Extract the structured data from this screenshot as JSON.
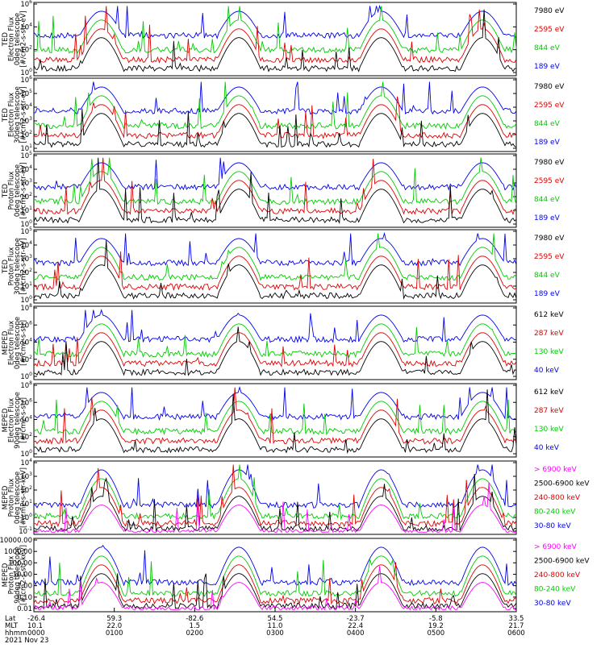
{
  "chart_data": [
    {
      "type": "line",
      "ylabel_lines": [
        "TED",
        "Electron Flux",
        "0deg telescope",
        "[#/cm2-s-str-eV]"
      ],
      "yscale": "log",
      "ytick_labels": [
        "10^6",
        "10^4",
        "10^2",
        "10^0"
      ],
      "yrange_exp": [
        0,
        6
      ],
      "legend": [
        {
          "name": "7980 eV",
          "color": "#000000"
        },
        {
          "name": "2595 eV",
          "color": "#e00000"
        },
        {
          "name": "844 eV",
          "color": "#00cc00"
        },
        {
          "name": "189 eV",
          "color": "#0000ee"
        }
      ]
    },
    {
      "type": "line",
      "ylabel_lines": [
        "TED",
        "Electron Flux",
        "30deg telescope",
        "[#/cm2-s-str-eV]"
      ],
      "yscale": "log",
      "ytick_labels": [
        "10^6",
        "10^5",
        "10^4",
        "10^3",
        "10^2",
        "10^1"
      ],
      "yrange_exp": [
        1,
        6
      ],
      "legend": [
        {
          "name": "7980 eV",
          "color": "#000000"
        },
        {
          "name": "2595 eV",
          "color": "#e00000"
        },
        {
          "name": "844 eV",
          "color": "#00cc00"
        },
        {
          "name": "189 eV",
          "color": "#0000ee"
        }
      ]
    },
    {
      "type": "line",
      "ylabel_lines": [
        "TED",
        "Proton Flux",
        "0deg telescope",
        "[#/cm2-s-str-eV]"
      ],
      "yscale": "log",
      "ytick_labels": [
        "10^5",
        "10^4",
        "10^3",
        "10^2",
        "10^1",
        "10^0"
      ],
      "yrange_exp": [
        0,
        5
      ],
      "legend": [
        {
          "name": "7980 eV",
          "color": "#000000"
        },
        {
          "name": "2595 eV",
          "color": "#e00000"
        },
        {
          "name": "844 eV",
          "color": "#00cc00"
        },
        {
          "name": "189 eV",
          "color": "#0000ee"
        }
      ]
    },
    {
      "type": "line",
      "ylabel_lines": [
        "TED",
        "Proton Flux",
        "30deg telescope",
        "[#/cm2-s-str-eV]"
      ],
      "yscale": "log",
      "ytick_labels": [
        "10^5",
        "10^4",
        "10^3",
        "10^2",
        "10^1",
        "10^0"
      ],
      "yrange_exp": [
        0,
        5
      ],
      "legend": [
        {
          "name": "7980 eV",
          "color": "#000000"
        },
        {
          "name": "2595 eV",
          "color": "#e00000"
        },
        {
          "name": "844 eV",
          "color": "#00cc00"
        },
        {
          "name": "189 eV",
          "color": "#0000ee"
        }
      ]
    },
    {
      "type": "line",
      "ylabel_lines": [
        "MEPED",
        "Electron Flux",
        "0deg telescope",
        "[#/cm2-s-str]"
      ],
      "yscale": "log",
      "ytick_labels": [
        "10^8",
        "10^6",
        "10^4",
        "10^2",
        "10^0"
      ],
      "yrange_exp": [
        0,
        8
      ],
      "legend": [
        {
          "name": "612 keV",
          "color": "#000000"
        },
        {
          "name": "287 keV",
          "color": "#e00000"
        },
        {
          "name": "130 keV",
          "color": "#00cc00"
        },
        {
          "name": "40 keV",
          "color": "#0000ee"
        }
      ]
    },
    {
      "type": "line",
      "ylabel_lines": [
        "MEPED",
        "Electron Flux",
        "90deg telescope",
        "[#/cm2-s-str]"
      ],
      "yscale": "log",
      "ytick_labels": [
        "10^8",
        "10^6",
        "10^4",
        "10^2",
        "10^0"
      ],
      "yrange_exp": [
        0,
        8
      ],
      "legend": [
        {
          "name": "612 keV",
          "color": "#000000"
        },
        {
          "name": "287 keV",
          "color": "#e00000"
        },
        {
          "name": "130 keV",
          "color": "#00cc00"
        },
        {
          "name": "40 keV",
          "color": "#0000ee"
        }
      ]
    },
    {
      "type": "line",
      "ylabel_lines": [
        "MEPED",
        "Proton Flux",
        "0deg telescope",
        "[#/cm2-s-str-keV]"
      ],
      "yscale": "log",
      "ytick_labels": [
        "10^4",
        "10^3",
        "10^2",
        "10^1",
        "10^0",
        "10^-1"
      ],
      "yrange_exp": [
        -1,
        4
      ],
      "legend": [
        {
          "name": "> 6900 keV",
          "color": "#ff00ff"
        },
        {
          "name": "2500-6900 keV",
          "color": "#000000"
        },
        {
          "name": "240-800 keV",
          "color": "#e00000"
        },
        {
          "name": "80-240 keV",
          "color": "#00cc00"
        },
        {
          "name": "30-80 keV",
          "color": "#0000ee"
        }
      ]
    },
    {
      "type": "line",
      "ylabel_lines": [
        "MEPED",
        "Proton Flux",
        "90deg telescope",
        "[#/cm2-s-str-keV]"
      ],
      "yscale": "log",
      "ytick_labels": [
        "10000.00",
        "1000.00",
        "100.00",
        "10.00",
        "1.00",
        "0.10",
        "0.01"
      ],
      "yrange_exp": [
        -2,
        4
      ],
      "legend": [
        {
          "name": "> 6900 keV",
          "color": "#ff00ff"
        },
        {
          "name": "2500-6900 keV",
          "color": "#000000"
        },
        {
          "name": "240-800 keV",
          "color": "#e00000"
        },
        {
          "name": "80-240 keV",
          "color": "#00cc00"
        },
        {
          "name": "30-80 keV",
          "color": "#0000ee"
        }
      ]
    }
  ],
  "xaxis": {
    "row_labels": [
      "Lat",
      "MLT",
      "hhmm"
    ],
    "ticks": [
      {
        "lat": "-26.4",
        "mlt": "10.1",
        "time": "0000"
      },
      {
        "lat": "59.3",
        "mlt": "22.0",
        "time": "0100"
      },
      {
        "lat": "-82.6",
        "mlt": "1.5",
        "time": "0200"
      },
      {
        "lat": "54.5",
        "mlt": "11.0",
        "time": "0300"
      },
      {
        "lat": "-23.7",
        "mlt": "22.4",
        "time": "0400"
      },
      {
        "lat": "-5.8",
        "mlt": "19.2",
        "time": "0500"
      },
      {
        "lat": "33.5",
        "mlt": "21.7",
        "time": "0600"
      }
    ],
    "date": "2021 Nov 23"
  }
}
